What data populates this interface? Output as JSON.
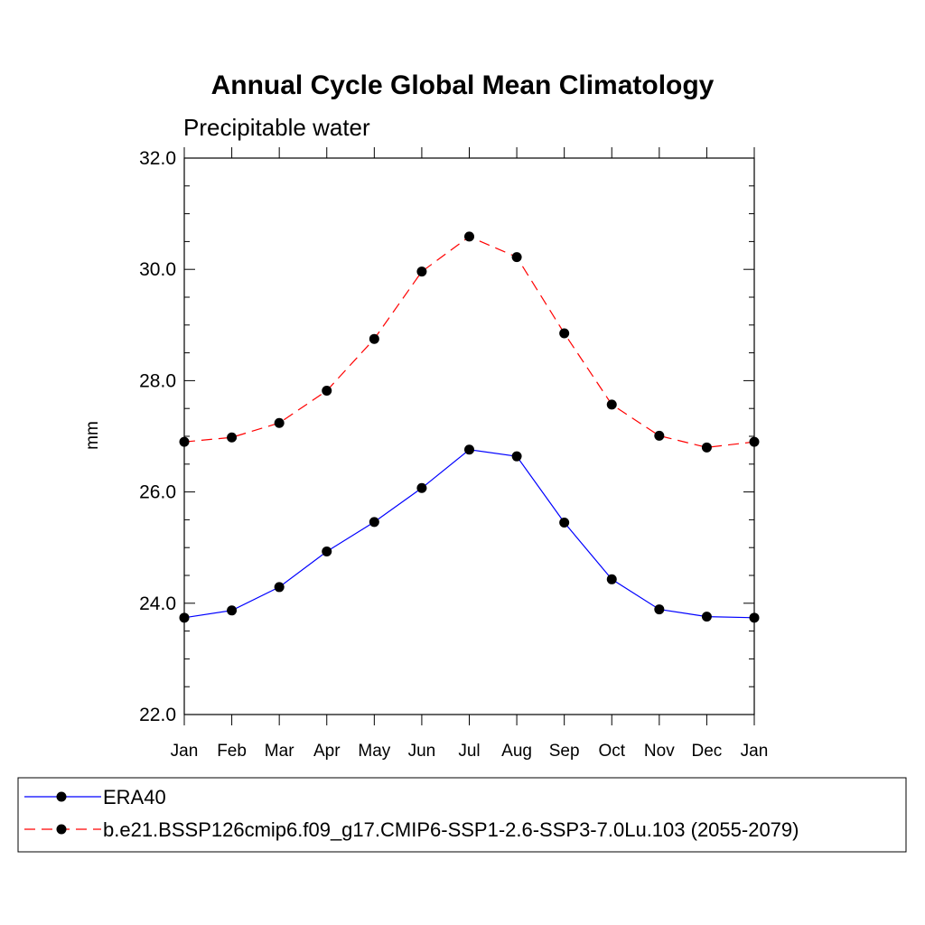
{
  "chart_data": {
    "type": "line",
    "title": "Annual Cycle Global Mean Climatology",
    "subtitle": "Precipitable water",
    "xlabel": "",
    "ylabel": "mm",
    "categories": [
      "Jan",
      "Feb",
      "Mar",
      "Apr",
      "May",
      "Jun",
      "Jul",
      "Aug",
      "Sep",
      "Oct",
      "Nov",
      "Dec",
      "Jan"
    ],
    "ylim": [
      22.0,
      32.0
    ],
    "yticks": [
      "22.0",
      "24.0",
      "26.0",
      "28.0",
      "30.0",
      "32.0"
    ],
    "grid": false,
    "legend_position": "bottom",
    "series": [
      {
        "name": "ERA40",
        "color": "#0000ff",
        "line_style": "solid",
        "marker": "filled-circle",
        "values": [
          23.74,
          23.87,
          24.29,
          24.93,
          25.46,
          26.07,
          26.76,
          26.64,
          25.45,
          24.43,
          23.89,
          23.76,
          23.74
        ]
      },
      {
        "name": "b.e21.BSSP126cmip6.f09_g17.CMIP6-SSP1-2.6-SSP3-7.0Lu.103 (2055-2079)",
        "color": "#ff0000",
        "line_style": "dashed",
        "marker": "filled-circle",
        "values": [
          26.9,
          26.98,
          27.24,
          27.82,
          28.75,
          29.96,
          30.59,
          30.22,
          28.85,
          27.57,
          27.01,
          26.8,
          26.9
        ]
      }
    ]
  }
}
